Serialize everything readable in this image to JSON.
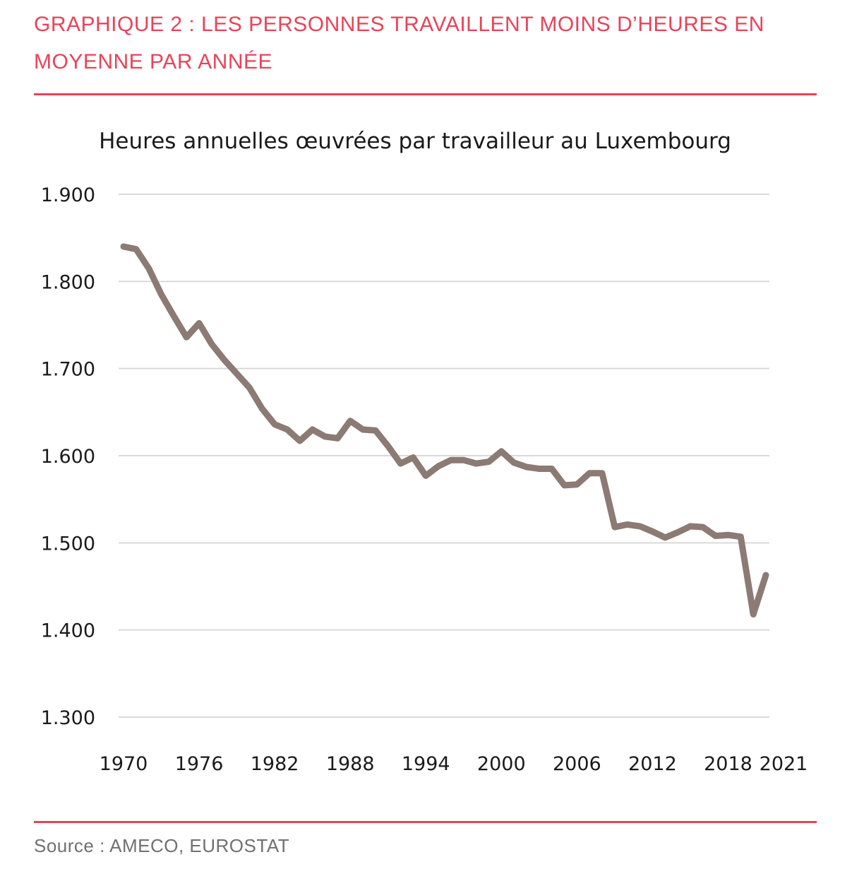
{
  "header": {
    "heading": "GRAPHIQUE 2 : LES PERSONNES TRAVAILLENT MOINS D’HEURES EN MOYENNE PAR ANNÉE"
  },
  "footer": {
    "source": "Source : AMECO, EUROSTAT"
  },
  "colors": {
    "accent": "#e8435a",
    "line": "#8c7a74",
    "grid": "#d9d9d9"
  },
  "chart_data": {
    "type": "line",
    "title": "Heures annuelles œuvrées par travailleur au Luxembourg",
    "xlabel": "",
    "ylabel": "",
    "ylim": [
      1300,
      1900
    ],
    "xlim": [
      1970,
      2021
    ],
    "grid": true,
    "legend": "none",
    "y_ticks": [
      {
        "value": 1900,
        "label": "1.900"
      },
      {
        "value": 1800,
        "label": "1.800"
      },
      {
        "value": 1700,
        "label": "1.700"
      },
      {
        "value": 1600,
        "label": "1.600"
      },
      {
        "value": 1500,
        "label": "1.500"
      },
      {
        "value": 1400,
        "label": "1.400"
      },
      {
        "value": 1300,
        "label": "1.300"
      }
    ],
    "x_ticks": [
      {
        "value": 1970,
        "label": "1970"
      },
      {
        "value": 1976,
        "label": "1976"
      },
      {
        "value": 1982,
        "label": "1982"
      },
      {
        "value": 1988,
        "label": "1988"
      },
      {
        "value": 1994,
        "label": "1994"
      },
      {
        "value": 2000,
        "label": "2000"
      },
      {
        "value": 2006,
        "label": "2006"
      },
      {
        "value": 2012,
        "label": "2012"
      },
      {
        "value": 2018,
        "label": "2018"
      },
      {
        "value": 2021,
        "label": "2021"
      }
    ],
    "x": [
      1970,
      1971,
      1972,
      1973,
      1974,
      1975,
      1976,
      1977,
      1978,
      1979,
      1980,
      1981,
      1982,
      1983,
      1984,
      1985,
      1986,
      1987,
      1988,
      1989,
      1990,
      1991,
      1992,
      1993,
      1994,
      1995,
      1996,
      1997,
      1998,
      1999,
      2000,
      2001,
      2002,
      2003,
      2004,
      2005,
      2006,
      2007,
      2008,
      2009,
      2010,
      2011,
      2012,
      2013,
      2014,
      2015,
      2016,
      2017,
      2018,
      2019,
      2020,
      2021
    ],
    "series": [
      {
        "values": [
          1840,
          1837,
          1815,
          1785,
          1760,
          1736,
          1752,
          1728,
          1710,
          1694,
          1678,
          1654,
          1636,
          1630,
          1617,
          1630,
          1622,
          1620,
          1640,
          1630,
          1629,
          1611,
          1591,
          1598,
          1577,
          1588,
          1595,
          1595,
          1591,
          1593,
          1605,
          1592,
          1587,
          1585,
          1585,
          1566,
          1567,
          1580,
          1580,
          1518,
          1521,
          1519,
          1513,
          1506,
          1512,
          1519,
          1518,
          1508,
          1509,
          1507,
          1418,
          1463
        ]
      }
    ]
  }
}
